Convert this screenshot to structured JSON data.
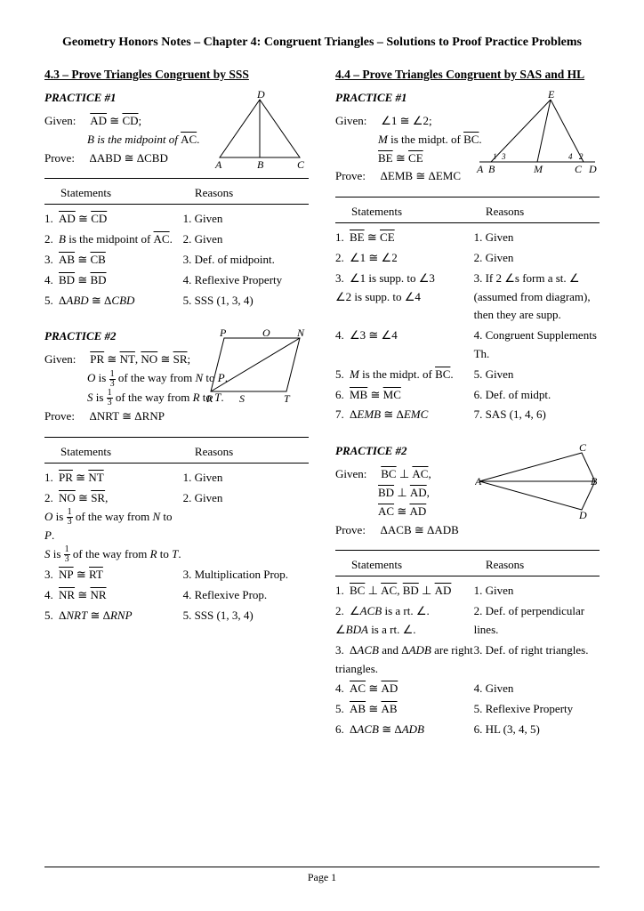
{
  "doc_title": "Geometry Honors Notes – Chapter 4: Congruent Triangles – Solutions to Proof Practice Problems",
  "page_footer": "Page 1",
  "left": {
    "section": "4.3 – Prove Triangles Congruent by SSS",
    "p1": {
      "label": "PRACTICE #1",
      "given1a": "AD",
      "given1b": "CD",
      "given2a": "B is the midpoint of ",
      "given2b": "AC",
      "prove": "ΔABD ≅ ΔCBD",
      "hdr_s": "Statements",
      "hdr_r": "Reasons",
      "rows": [
        {
          "n": "1.",
          "s_html": "<span class='seg'>AD</span> ≅ <span class='seg'>CD</span>",
          "r": "1.  Given"
        },
        {
          "n": "2.",
          "s_html": "<i>B</i> is the midpoint of <span class='seg'>AC</span>.",
          "r": "2.  Given"
        },
        {
          "n": "3.",
          "s_html": "<span class='seg'>AB</span> ≅ <span class='seg'>CB</span>",
          "r": "3.  Def. of midpoint."
        },
        {
          "n": "4.",
          "s_html": "<span class='seg'>BD</span> ≅ <span class='seg'>BD</span>",
          "r": "4.  Reflexive Property"
        },
        {
          "n": "5.",
          "s_html": "Δ<i>ABD</i> ≅ Δ<i>CBD</i>",
          "r": "5.  SSS (1, 3, 4)"
        }
      ]
    },
    "p2": {
      "label": "PRACTICE #2",
      "given1_html": "<span class='seg'>PR</span> ≅ <span class='seg'>NT</span>,  <span class='seg'>NO</span> ≅ <span class='seg'>SR</span>;",
      "given2_html": "<i>O</i> is <span class='frac'><span class='top'>1</span><span class='bot'>3</span></span> of the way from <i>N</i> to <i>P</i>.",
      "given3_html": "<i>S</i>  is <span class='frac'><span class='top'>1</span><span class='bot'>3</span></span> of the way from <i>R</i> to <i>T</i>.",
      "prove": "ΔNRT ≅ ΔRNP",
      "hdr_s": "Statements",
      "hdr_r": "Reasons",
      "rows": [
        {
          "n": "1.",
          "s_html": "<span class='seg'>PR</span> ≅ <span class='seg'>NT</span>",
          "r": "1.  Given"
        },
        {
          "n": "2.",
          "s_html": "<span class='seg'>NO</span> ≅ <span class='seg'>SR</span>,<br><span style='padding-left:0'><i>O</i> is <span class='frac'><span class='top'>1</span><span class='bot'>3</span></span> of the way from <i>N</i> to <i>P</i>.</span><br><i>S</i>  is <span class='frac'><span class='top'>1</span><span class='bot'>3</span></span> of the way from <i>R</i> to <i>T</i>.",
          "r": "2.  Given"
        },
        {
          "n": "3.",
          "s_html": "<span class='seg'>NP</span> ≅ <span class='seg'>RT</span>",
          "r": "3.  Multiplication Prop."
        },
        {
          "n": "4.",
          "s_html": "<span class='seg'>NR</span> ≅ <span class='seg'>NR</span>",
          "r": "4.  Reflexive Prop."
        },
        {
          "n": "5.",
          "s_html": "Δ<i>NRT</i> ≅ Δ<i>RNP</i>",
          "r": "5.  SSS (1, 3, 4)"
        }
      ]
    }
  },
  "right": {
    "section": "4.4 – Prove Triangles Congruent by SAS and HL",
    "p1": {
      "label": "PRACTICE #1",
      "given1": "∠1 ≅ ∠2;",
      "given2_html": "<i>M</i> is the midpt. of <span class='seg'>BC</span>.",
      "given3_html": "<span class='seg'>BE</span> ≅ <span class='seg'>CE</span>",
      "prove": "ΔEMB ≅ ΔEMC",
      "hdr_s": "Statements",
      "hdr_r": "Reasons",
      "rows": [
        {
          "n": "1.",
          "s_html": "<span class='seg'>BE</span> ≅ <span class='seg'>CE</span>",
          "r": "1.  Given"
        },
        {
          "n": "2.",
          "s_html": "∠1 ≅ ∠2",
          "r": "2.  Given"
        },
        {
          "n": "3.",
          "s_html": "∠1 is supp. to ∠3<br>∠2 is supp. to ∠4",
          "r": "3.  If  2 ∠s form a st. ∠ (assumed from diagram), then they are supp."
        },
        {
          "n": "4.",
          "s_html": "∠3 ≅ ∠4",
          "r": "4.  Congruent Supplements Th."
        },
        {
          "n": "5.",
          "s_html": "<i>M</i> is the midpt. of <span class='seg'>BC</span>.",
          "r": "5.  Given"
        },
        {
          "n": "6.",
          "s_html": "<span class='seg'>MB</span> ≅ <span class='seg'>MC</span>",
          "r": "6.  Def. of midpt."
        },
        {
          "n": "7.",
          "s_html": "Δ<i>EMB</i> ≅ Δ<i>EMC</i>",
          "r": "7.  SAS (1, 4, 6)"
        }
      ]
    },
    "p2": {
      "label": "PRACTICE #2",
      "given1_html": "<span class='seg'>BC</span> ⊥ <span class='seg'>AC</span>,",
      "given2_html": "<span class='seg'>BD</span> ⊥ <span class='seg'>AD</span>,",
      "given3_html": "<span class='seg'>AC</span> ≅ <span class='seg'>AD</span>",
      "prove": "ΔACB ≅ ΔADB",
      "hdr_s": "Statements",
      "hdr_r": "Reasons",
      "rows": [
        {
          "n": "1.",
          "s_html": "<span class='seg'>BC</span> ⊥ <span class='seg'>AC</span>, <span class='seg'>BD</span> ⊥ <span class='seg'>AD</span>",
          "r": "1.  Given"
        },
        {
          "n": "2.",
          "s_html": "∠<i>ACB</i> is a rt. ∠.<br>∠<i>BDA</i> is a rt. ∠.",
          "r": "2.  Def. of perpendicular lines."
        },
        {
          "n": "3.",
          "s_html": "Δ<i>ACB</i> and Δ<i>ADB</i> are right triangles.",
          "r": "3.  Def. of right triangles."
        },
        {
          "n": "4.",
          "s_html": "<span class='seg'>AC</span> ≅ <span class='seg'>AD</span>",
          "r": "4.  Given"
        },
        {
          "n": "5.",
          "s_html": "<span class='seg'>AB</span> ≅ <span class='seg'>AB</span>",
          "r": "5.  Reflexive Property"
        },
        {
          "n": "6.",
          "s_html": "Δ<i>ACB</i> ≅ Δ<i>ADB</i>",
          "r": "6.  HL (3, 4, 5)"
        }
      ]
    }
  }
}
